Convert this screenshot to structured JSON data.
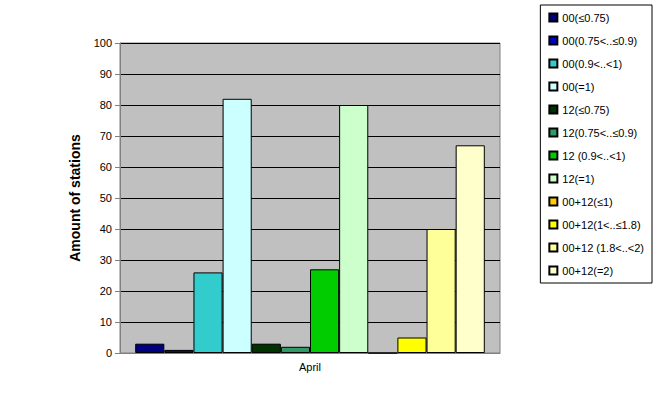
{
  "chart_data": {
    "type": "bar",
    "categories": [
      "April"
    ],
    "y_label": "Amount of stations",
    "series": [
      {
        "name": "00(≤0.75)",
        "color": "#000080",
        "values": [
          3
        ]
      },
      {
        "name": "00(0.75<..≤0.9)",
        "color": "#0000cc",
        "values": [
          1
        ]
      },
      {
        "name": "00(0.9<..<1)",
        "color": "#33cccc",
        "values": [
          26
        ]
      },
      {
        "name": "00(=1)",
        "color": "#ccffff",
        "values": [
          82
        ]
      },
      {
        "name": "12(≤0.75)",
        "color": "#003300",
        "values": [
          3
        ]
      },
      {
        "name": "12(0.75<..≤0.9)",
        "color": "#339966",
        "values": [
          2
        ]
      },
      {
        "name": "12 (0.9<..<1)",
        "color": "#00cc00",
        "values": [
          27
        ]
      },
      {
        "name": "12(=1)",
        "color": "#ccffcc",
        "values": [
          80
        ]
      },
      {
        "name": "00+12(≤1)",
        "color": "#ffcc00",
        "values": [
          0
        ]
      },
      {
        "name": "00+12(1<..≤1.8)",
        "color": "#ffff00",
        "values": [
          5
        ]
      },
      {
        "name": "00+12 (1.8<..<2)",
        "color": "#ffff99",
        "values": [
          40
        ]
      },
      {
        "name": "00+12(=2)",
        "color": "#ffffcc",
        "values": [
          67
        ]
      }
    ],
    "ylim": [
      0,
      100
    ],
    "yticks": [
      0,
      10,
      20,
      30,
      40,
      50,
      60,
      70,
      80,
      90,
      100
    ],
    "grid": true,
    "legend": "right"
  }
}
